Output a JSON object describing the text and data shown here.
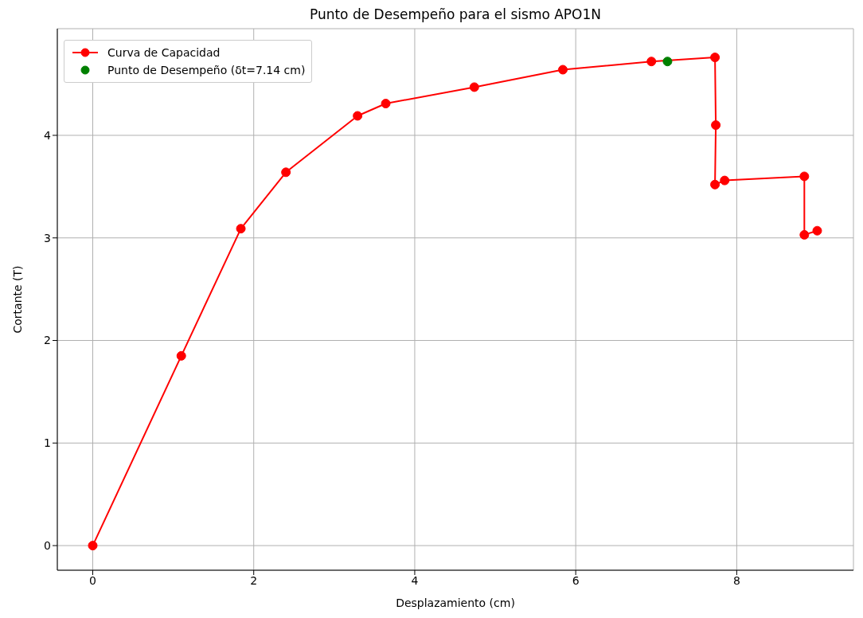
{
  "chart_data": {
    "type": "line",
    "title": "Punto de Desempeño para el sismo APO1N",
    "xlabel": "Desplazamiento (cm)",
    "ylabel": "Cortante (T)",
    "series": [
      {
        "name": "Curva de Capacidad",
        "type": "line",
        "color": "#ff0000",
        "marker": "circle",
        "x": [
          0,
          1.1,
          1.84,
          2.4,
          3.29,
          3.64,
          4.74,
          5.84,
          6.94,
          7.73,
          7.74,
          7.73,
          7.85,
          8.84,
          8.84,
          9.0
        ],
        "values": [
          0,
          1.85,
          3.09,
          3.64,
          4.19,
          4.31,
          4.47,
          4.64,
          4.72,
          4.76,
          4.1,
          3.52,
          3.56,
          3.6,
          3.03,
          3.07
        ]
      },
      {
        "name": "Punto de Desempeño (δt=7.14 cm)",
        "type": "scatter",
        "color": "#008000",
        "marker": "circle",
        "x": [
          7.14
        ],
        "values": [
          4.72
        ]
      }
    ],
    "xlim": [
      -0.44,
      9.45
    ],
    "ylim": [
      -0.24,
      5.04
    ],
    "xticks": [
      0,
      2,
      4,
      6,
      8
    ],
    "yticks": [
      0,
      1,
      2,
      3,
      4
    ],
    "grid": true,
    "legend": "top left"
  }
}
